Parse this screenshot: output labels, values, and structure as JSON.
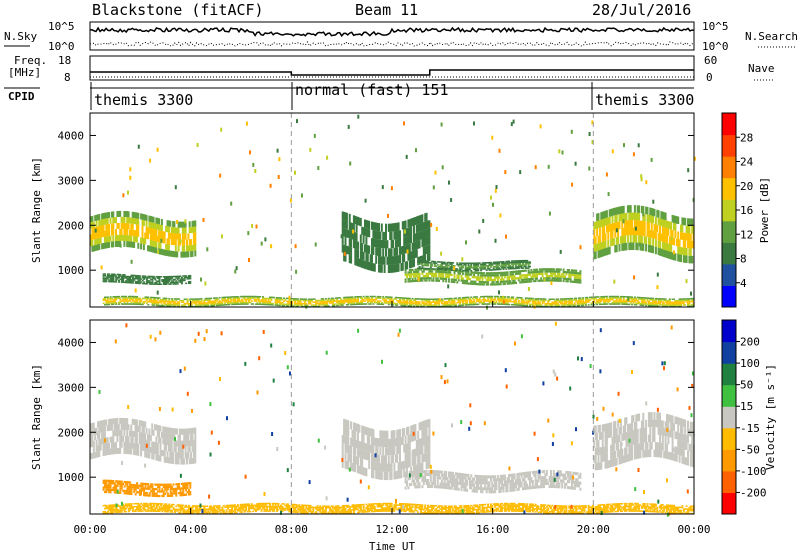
{
  "header": {
    "station": "Blackstone (fitACF)",
    "beam": "Beam 11",
    "date": "28/Jul/2016"
  },
  "noise_panel": {
    "left_label": "N.Sky",
    "right_label": "N.Search",
    "left_ticks": [
      "10^5",
      "10^0"
    ],
    "right_ticks": [
      "10^5",
      "10^0"
    ]
  },
  "freq_panel": {
    "left_label_1": "Freq.",
    "left_label_2": "[MHz]",
    "right_label": "Nave",
    "left_ticks": [
      "18",
      "8"
    ],
    "right_ticks": [
      "60",
      "0"
    ]
  },
  "cpid_panel": {
    "label": "CPID",
    "modes": [
      {
        "name": "themis 3300",
        "start_hour": 0
      },
      {
        "name": "normal (fast) 151",
        "start_hour": 8
      },
      {
        "name": "themis 3300",
        "start_hour": 20
      }
    ]
  },
  "power_panel": {
    "ylabel": "Slant Range [km]",
    "yticks": [
      "1000",
      "2000",
      "3000",
      "4000"
    ],
    "colorbar_label": "Power [dB]",
    "colorbar_ticks": [
      "4",
      "8",
      "12",
      "16",
      "20",
      "24",
      "28"
    ],
    "colorbar_colors": [
      "#0000ff",
      "#2050a0",
      "#3a7a40",
      "#60a040",
      "#c0d020",
      "#ffc000",
      "#ff8000",
      "#ff4000",
      "#ff0000"
    ]
  },
  "velocity_panel": {
    "ylabel": "Slant Range [km]",
    "yticks": [
      "1000",
      "2000",
      "3000",
      "4000"
    ],
    "colorbar_label": "Velocity [m s⁻¹]",
    "colorbar_ticks": [
      "-200",
      "-100",
      "-50",
      "-15",
      "15",
      "50",
      "100",
      "200"
    ],
    "colorbar_colors": [
      "#ff0000",
      "#ff6000",
      "#ff9900",
      "#ffbb00",
      "#c8c8c0",
      "#40c040",
      "#208040",
      "#1040a0",
      "#0000cc"
    ]
  },
  "xaxis": {
    "label": "Time UT",
    "ticks": [
      "00:00",
      "04:00",
      "08:00",
      "12:00",
      "16:00",
      "20:00",
      "00:00"
    ]
  },
  "chart_data": {
    "type": "heatmap",
    "title": "Blackstone (fitACF)",
    "x_range_hours": [
      0,
      24
    ],
    "y_range_km": [
      180,
      4500
    ],
    "xlabel": "Time UT",
    "ylabel": "Slant Range [km]",
    "power_features": [
      {
        "t0": 0.0,
        "t1": 4.2,
        "r0": 1400,
        "r1": 2200,
        "db": 22
      },
      {
        "t0": 0.5,
        "t1": 4.0,
        "r0": 700,
        "r1": 900,
        "db": 10
      },
      {
        "t0": 10.0,
        "t1": 13.5,
        "r0": 1100,
        "r1": 2200,
        "db": 10
      },
      {
        "t0": 12.5,
        "t1": 19.5,
        "r0": 700,
        "r1": 1000,
        "db": 18
      },
      {
        "t0": 13.0,
        "t1": 17.5,
        "r0": 1000,
        "r1": 1200,
        "db": 12
      },
      {
        "t0": 20.0,
        "t1": 24.0,
        "r0": 1300,
        "r1": 2300,
        "db": 20
      },
      {
        "t0": 0.5,
        "t1": 24.0,
        "r0": 200,
        "r1": 400,
        "db": 20
      }
    ],
    "velocity_features": [
      {
        "t0": 0.0,
        "t1": 4.2,
        "r0": 1400,
        "r1": 2200,
        "v": 0
      },
      {
        "t0": 0.5,
        "t1": 4.0,
        "r0": 600,
        "r1": 900,
        "v": -60
      },
      {
        "t0": 10.0,
        "t1": 13.5,
        "r0": 1100,
        "r1": 2200,
        "v": 0
      },
      {
        "t0": 12.5,
        "t1": 19.5,
        "r0": 700,
        "r1": 1100,
        "v": 0
      },
      {
        "t0": 20.0,
        "t1": 24.0,
        "r0": 1300,
        "r1": 2300,
        "v": 0
      },
      {
        "t0": 0.5,
        "t1": 24.0,
        "r0": 200,
        "r1": 400,
        "v": -40
      }
    ],
    "mode_boundaries_hours": [
      8,
      20
    ]
  }
}
